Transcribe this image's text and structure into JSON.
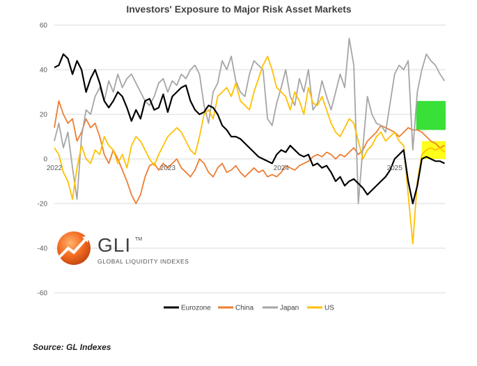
{
  "chart_data": {
    "type": "line",
    "title": "Investors' Exposure to Major Risk Asset Markets",
    "xlabel": "",
    "ylabel": "",
    "ylim": [
      -60,
      60
    ],
    "yticks": [
      60,
      40,
      20,
      0,
      -20,
      -40,
      -60
    ],
    "xlim": [
      2022.0,
      2025.45
    ],
    "xtick_labels": [
      {
        "x": 2022.0,
        "label": "2022"
      },
      {
        "x": 2023.0,
        "label": "2023"
      },
      {
        "x": 2024.0,
        "label": "2024"
      },
      {
        "x": 2025.0,
        "label": "2025"
      }
    ],
    "grid": "horizontal",
    "legend_position": "bottom",
    "highlights": [
      {
        "color": "#22dd22",
        "x": [
          2025.19,
          2025.45
        ],
        "y": [
          13,
          26
        ]
      },
      {
        "color": "#ffff00",
        "x": [
          2025.24,
          2025.45
        ],
        "y": [
          0,
          8
        ]
      }
    ],
    "series": [
      {
        "name": "Eurozone",
        "color": "#000000",
        "x": [
          2022.0,
          2022.04,
          2022.08,
          2022.12,
          2022.16,
          2022.2,
          2022.24,
          2022.28,
          2022.32,
          2022.36,
          2022.4,
          2022.44,
          2022.48,
          2022.52,
          2022.56,
          2022.6,
          2022.64,
          2022.68,
          2022.72,
          2022.76,
          2022.8,
          2022.84,
          2022.88,
          2022.92,
          2022.96,
          2023.0,
          2023.04,
          2023.08,
          2023.12,
          2023.16,
          2023.2,
          2023.24,
          2023.28,
          2023.32,
          2023.36,
          2023.4,
          2023.44,
          2023.48,
          2023.52,
          2023.56,
          2023.6,
          2023.64,
          2023.68,
          2023.72,
          2023.76,
          2023.8,
          2023.84,
          2023.88,
          2023.92,
          2023.96,
          2024.0,
          2024.04,
          2024.08,
          2024.12,
          2024.16,
          2024.2,
          2024.24,
          2024.28,
          2024.32,
          2024.36,
          2024.4,
          2024.44,
          2024.48,
          2024.52,
          2024.56,
          2024.6,
          2024.64,
          2024.68,
          2024.72,
          2024.76,
          2024.8,
          2024.84,
          2024.88,
          2024.92,
          2024.96,
          2025.0,
          2025.04,
          2025.08,
          2025.12,
          2025.16,
          2025.2,
          2025.24,
          2025.28,
          2025.32,
          2025.36,
          2025.4,
          2025.44
        ],
        "values": [
          41,
          42,
          47,
          45,
          38,
          44,
          40,
          30,
          36,
          40,
          34,
          26,
          23,
          26,
          30,
          28,
          23,
          17,
          22,
          18,
          26,
          27,
          22,
          23,
          29,
          21,
          28,
          30,
          32,
          33,
          26,
          22,
          20,
          21,
          24,
          23,
          20,
          15,
          13,
          10,
          10,
          9,
          7,
          5,
          3,
          1,
          0,
          -1,
          -2,
          2,
          4,
          3,
          6,
          4,
          2,
          1,
          2,
          -3,
          -2,
          -4,
          -3,
          -6,
          -10,
          -8,
          -12,
          -10,
          -9,
          -11,
          -13,
          -16,
          -14,
          -12,
          -10,
          -8,
          -5,
          0,
          2,
          4,
          -10,
          -20,
          -12,
          0,
          1,
          0,
          -1,
          -1,
          -2
        ]
      },
      {
        "name": "China",
        "color": "#ed7d31",
        "x": [
          2022.0,
          2022.04,
          2022.08,
          2022.12,
          2022.16,
          2022.2,
          2022.24,
          2022.28,
          2022.32,
          2022.36,
          2022.4,
          2022.44,
          2022.48,
          2022.52,
          2022.56,
          2022.6,
          2022.64,
          2022.68,
          2022.72,
          2022.76,
          2022.8,
          2022.84,
          2022.88,
          2022.92,
          2022.96,
          2023.0,
          2023.04,
          2023.08,
          2023.12,
          2023.16,
          2023.2,
          2023.24,
          2023.28,
          2023.32,
          2023.36,
          2023.4,
          2023.44,
          2023.48,
          2023.52,
          2023.56,
          2023.6,
          2023.64,
          2023.68,
          2023.72,
          2023.76,
          2023.8,
          2023.84,
          2023.88,
          2023.92,
          2023.96,
          2024.0,
          2024.04,
          2024.08,
          2024.12,
          2024.16,
          2024.2,
          2024.24,
          2024.28,
          2024.32,
          2024.36,
          2024.4,
          2024.44,
          2024.48,
          2024.52,
          2024.56,
          2024.6,
          2024.64,
          2024.68,
          2024.72,
          2024.76,
          2024.8,
          2024.84,
          2024.88,
          2024.92,
          2024.96,
          2025.0,
          2025.04,
          2025.08,
          2025.12,
          2025.16,
          2025.2,
          2025.24,
          2025.28,
          2025.32,
          2025.36,
          2025.4,
          2025.44
        ],
        "values": [
          14,
          26,
          20,
          16,
          18,
          8,
          12,
          18,
          14,
          16,
          10,
          2,
          -2,
          4,
          0,
          -5,
          -10,
          -16,
          -20,
          -16,
          -8,
          -3,
          -2,
          -5,
          -2,
          -4,
          -2,
          0,
          -4,
          -6,
          -8,
          -5,
          0,
          -2,
          -6,
          -8,
          -4,
          -2,
          -6,
          -5,
          -3,
          -6,
          -8,
          -6,
          -4,
          -6,
          -5,
          -8,
          -7,
          -8,
          -6,
          -3,
          -4,
          -5,
          -3,
          -2,
          -1,
          1,
          2,
          1,
          3,
          2,
          0,
          2,
          1,
          3,
          5,
          2,
          4,
          8,
          10,
          12,
          15,
          14,
          13,
          12,
          10,
          12,
          14,
          13,
          13,
          12,
          10,
          8,
          7,
          5,
          6
        ]
      },
      {
        "name": "Japan",
        "color": "#a5a5a5",
        "x": [
          2022.0,
          2022.04,
          2022.08,
          2022.12,
          2022.16,
          2022.2,
          2022.24,
          2022.28,
          2022.32,
          2022.36,
          2022.4,
          2022.44,
          2022.48,
          2022.52,
          2022.56,
          2022.6,
          2022.64,
          2022.68,
          2022.72,
          2022.76,
          2022.8,
          2022.84,
          2022.88,
          2022.92,
          2022.96,
          2023.0,
          2023.04,
          2023.08,
          2023.12,
          2023.16,
          2023.2,
          2023.24,
          2023.28,
          2023.32,
          2023.36,
          2023.4,
          2023.44,
          2023.48,
          2023.52,
          2023.56,
          2023.6,
          2023.64,
          2023.68,
          2023.72,
          2023.76,
          2023.8,
          2023.84,
          2023.88,
          2023.92,
          2023.96,
          2024.0,
          2024.04,
          2024.08,
          2024.12,
          2024.16,
          2024.2,
          2024.24,
          2024.28,
          2024.32,
          2024.36,
          2024.4,
          2024.44,
          2024.48,
          2024.52,
          2024.56,
          2024.6,
          2024.64,
          2024.68,
          2024.72,
          2024.76,
          2024.8,
          2024.84,
          2024.88,
          2024.92,
          2024.96,
          2025.0,
          2025.04,
          2025.08,
          2025.12,
          2025.16,
          2025.2,
          2025.24,
          2025.28,
          2025.32,
          2025.36,
          2025.4,
          2025.44
        ],
        "values": [
          8,
          16,
          5,
          12,
          -4,
          -18,
          10,
          22,
          20,
          28,
          32,
          26,
          35,
          30,
          38,
          32,
          36,
          38,
          34,
          30,
          26,
          24,
          28,
          34,
          36,
          30,
          35,
          33,
          38,
          36,
          40,
          42,
          38,
          24,
          16,
          30,
          34,
          44,
          40,
          46,
          35,
          30,
          28,
          38,
          44,
          42,
          40,
          18,
          15,
          25,
          32,
          40,
          28,
          24,
          36,
          30,
          40,
          22,
          25,
          35,
          28,
          22,
          30,
          38,
          32,
          54,
          42,
          -20,
          5,
          28,
          20,
          16,
          15,
          12,
          25,
          38,
          42,
          40,
          44,
          4,
          30,
          40,
          47,
          44,
          42,
          38,
          35
        ]
      },
      {
        "name": "US",
        "color": "#ffc000",
        "x": [
          2022.0,
          2022.04,
          2022.08,
          2022.12,
          2022.16,
          2022.2,
          2022.24,
          2022.28,
          2022.32,
          2022.36,
          2022.4,
          2022.44,
          2022.48,
          2022.52,
          2022.56,
          2022.6,
          2022.64,
          2022.68,
          2022.72,
          2022.76,
          2022.8,
          2022.84,
          2022.88,
          2022.92,
          2022.96,
          2023.0,
          2023.04,
          2023.08,
          2023.12,
          2023.16,
          2023.2,
          2023.24,
          2023.28,
          2023.32,
          2023.36,
          2023.4,
          2023.44,
          2023.48,
          2023.52,
          2023.56,
          2023.6,
          2023.64,
          2023.68,
          2023.72,
          2023.76,
          2023.8,
          2023.84,
          2023.88,
          2023.92,
          2023.96,
          2024.0,
          2024.04,
          2024.08,
          2024.12,
          2024.16,
          2024.2,
          2024.24,
          2024.28,
          2024.32,
          2024.36,
          2024.4,
          2024.44,
          2024.48,
          2024.52,
          2024.56,
          2024.6,
          2024.64,
          2024.68,
          2024.72,
          2024.76,
          2024.8,
          2024.84,
          2024.88,
          2024.92,
          2024.96,
          2025.0,
          2025.04,
          2025.08,
          2025.12,
          2025.16,
          2025.2,
          2025.24,
          2025.28,
          2025.32,
          2025.36,
          2025.4,
          2025.44
        ],
        "values": [
          5,
          2,
          -6,
          -10,
          -18,
          -4,
          6,
          0,
          -2,
          4,
          2,
          10,
          6,
          4,
          -2,
          2,
          -4,
          6,
          10,
          8,
          4,
          0,
          -3,
          2,
          6,
          10,
          12,
          14,
          12,
          8,
          4,
          2,
          10,
          20,
          22,
          18,
          28,
          30,
          32,
          28,
          34,
          26,
          24,
          22,
          30,
          36,
          42,
          46,
          40,
          32,
          30,
          28,
          22,
          30,
          26,
          20,
          32,
          25,
          24,
          28,
          22,
          16,
          12,
          10,
          14,
          18,
          16,
          8,
          0,
          4,
          6,
          10,
          12,
          8,
          10,
          12,
          8,
          6,
          -16,
          -38,
          -10,
          2,
          4,
          5,
          4,
          5,
          3
        ]
      }
    ]
  },
  "logo": {
    "text": "GLI",
    "tm": "TM",
    "subtitle": "GLOBAL LIQUIDITY INDEXES"
  },
  "source": "Source: GL Indexes",
  "colors": {
    "grid": "#d9d9d9",
    "logo_orange": "#f26a21"
  }
}
